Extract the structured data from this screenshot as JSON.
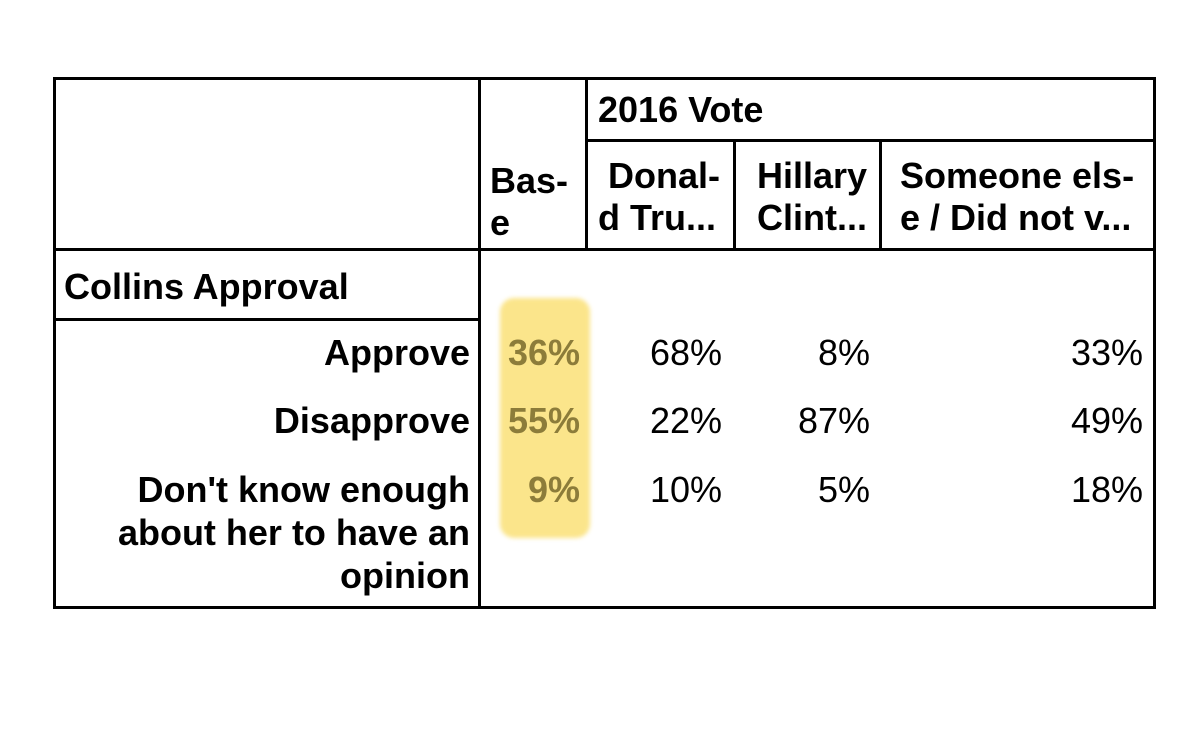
{
  "table": {
    "group_header": "2016 Vote",
    "base_header": [
      "Bas-",
      "e"
    ],
    "columns": [
      [
        "Donal-",
        "d Tru..."
      ],
      [
        "Hillary",
        "Clint..."
      ],
      [
        "Someone els-",
        "e / Did not v..."
      ]
    ],
    "section_label": "Collins Approval",
    "rows": [
      {
        "label": [
          "Approve"
        ],
        "base": "36%",
        "trump": "68%",
        "clinton": "8%",
        "other": "33%"
      },
      {
        "label": [
          "Disapprove"
        ],
        "base": "55%",
        "trump": "22%",
        "clinton": "87%",
        "other": "49%"
      },
      {
        "label": [
          "Don't know enough",
          "about her to have an",
          "opinion"
        ],
        "base": "9%",
        "trump": "10%",
        "clinton": "5%",
        "other": "18%"
      }
    ],
    "highlight_color": "#fade6e",
    "base_text_color": "#8c7c3a"
  }
}
